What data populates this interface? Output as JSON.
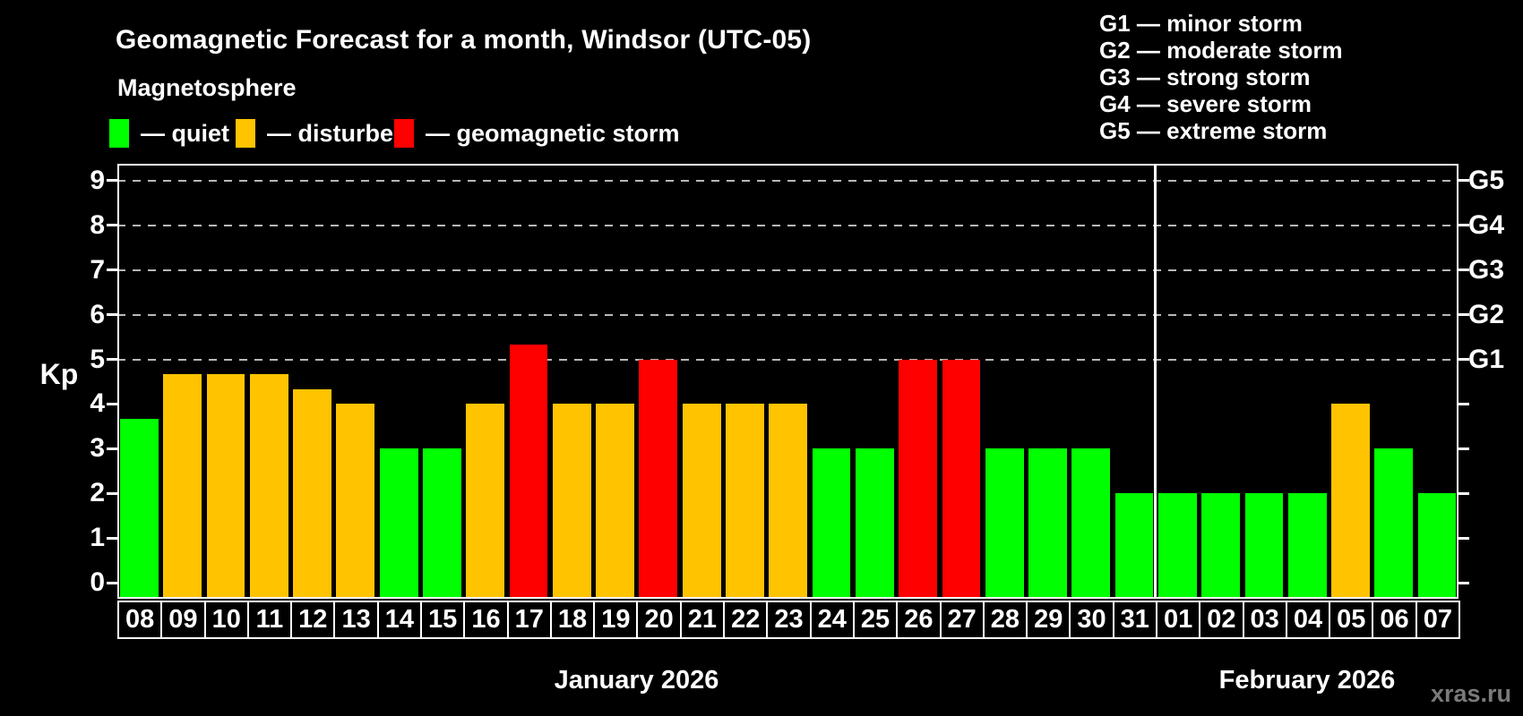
{
  "title": "Geomagnetic Forecast for a month, Windsor (UTC-05)",
  "subtitle": "Magnetosphere",
  "watermark": "xras.ru",
  "colors": {
    "background": "#000000",
    "axis": "#ffffff",
    "grid": "#b8b8b8",
    "text": "#ffffff",
    "watermark": "#7a7a7a",
    "quiet": "#00ff00",
    "disturbed": "#ffc300",
    "storm": "#ff0000"
  },
  "legend": {
    "items": [
      {
        "status": "quiet",
        "label": "— quiet"
      },
      {
        "status": "disturbed",
        "label": "— disturbed"
      },
      {
        "status": "storm",
        "label": "— geomagnetic storm"
      }
    ]
  },
  "g_scale_legend": {
    "items": [
      "G1 — minor storm",
      "G2 — moderate storm",
      "G3 — strong storm",
      "G4 — severe storm",
      "G5 — extreme storm"
    ]
  },
  "chart_data": {
    "type": "bar",
    "title": "Geomagnetic Forecast for a month, Windsor (UTC-05)",
    "ylabel": "Kp",
    "ylim": [
      0,
      9
    ],
    "y_ticks": [
      0,
      1,
      2,
      3,
      4,
      5,
      6,
      7,
      8,
      9
    ],
    "grid": "dashed horizontal lines only at Kp 5,6,7,8,9 (storm levels G1-G5)",
    "right_axis_labels": [
      {
        "kp": 5,
        "label": "G1"
      },
      {
        "kp": 6,
        "label": "G2"
      },
      {
        "kp": 7,
        "label": "G3"
      },
      {
        "kp": 8,
        "label": "G4"
      },
      {
        "kp": 9,
        "label": "G5"
      }
    ],
    "months": [
      {
        "label": "January 2026",
        "short": "jan",
        "start": 0,
        "count": 24
      },
      {
        "label": "February 2026",
        "short": "feb",
        "start": 24,
        "count": 7
      }
    ],
    "bars": [
      {
        "day": "08",
        "kp": 3.67,
        "status": "quiet"
      },
      {
        "day": "09",
        "kp": 4.67,
        "status": "disturbed"
      },
      {
        "day": "10",
        "kp": 4.67,
        "status": "disturbed"
      },
      {
        "day": "11",
        "kp": 4.67,
        "status": "disturbed"
      },
      {
        "day": "12",
        "kp": 4.33,
        "status": "disturbed"
      },
      {
        "day": "13",
        "kp": 4.0,
        "status": "disturbed"
      },
      {
        "day": "14",
        "kp": 3.0,
        "status": "quiet"
      },
      {
        "day": "15",
        "kp": 3.0,
        "status": "quiet"
      },
      {
        "day": "16",
        "kp": 4.0,
        "status": "disturbed"
      },
      {
        "day": "17",
        "kp": 5.33,
        "status": "storm"
      },
      {
        "day": "18",
        "kp": 4.0,
        "status": "disturbed"
      },
      {
        "day": "19",
        "kp": 4.0,
        "status": "disturbed"
      },
      {
        "day": "20",
        "kp": 5.0,
        "status": "storm"
      },
      {
        "day": "21",
        "kp": 4.0,
        "status": "disturbed"
      },
      {
        "day": "22",
        "kp": 4.0,
        "status": "disturbed"
      },
      {
        "day": "23",
        "kp": 4.0,
        "status": "disturbed"
      },
      {
        "day": "24",
        "kp": 3.0,
        "status": "quiet"
      },
      {
        "day": "25",
        "kp": 3.0,
        "status": "quiet"
      },
      {
        "day": "26",
        "kp": 5.0,
        "status": "storm"
      },
      {
        "day": "27",
        "kp": 5.0,
        "status": "storm"
      },
      {
        "day": "28",
        "kp": 3.0,
        "status": "quiet"
      },
      {
        "day": "29",
        "kp": 3.0,
        "status": "quiet"
      },
      {
        "day": "30",
        "kp": 3.0,
        "status": "quiet"
      },
      {
        "day": "31",
        "kp": 2.0,
        "status": "quiet"
      },
      {
        "day": "01",
        "kp": 2.0,
        "status": "quiet"
      },
      {
        "day": "02",
        "kp": 2.0,
        "status": "quiet"
      },
      {
        "day": "03",
        "kp": 2.0,
        "status": "quiet"
      },
      {
        "day": "04",
        "kp": 2.0,
        "status": "quiet"
      },
      {
        "day": "05",
        "kp": 4.0,
        "status": "disturbed"
      },
      {
        "day": "06",
        "kp": 3.0,
        "status": "quiet"
      },
      {
        "day": "07",
        "kp": 2.0,
        "status": "quiet"
      }
    ]
  }
}
